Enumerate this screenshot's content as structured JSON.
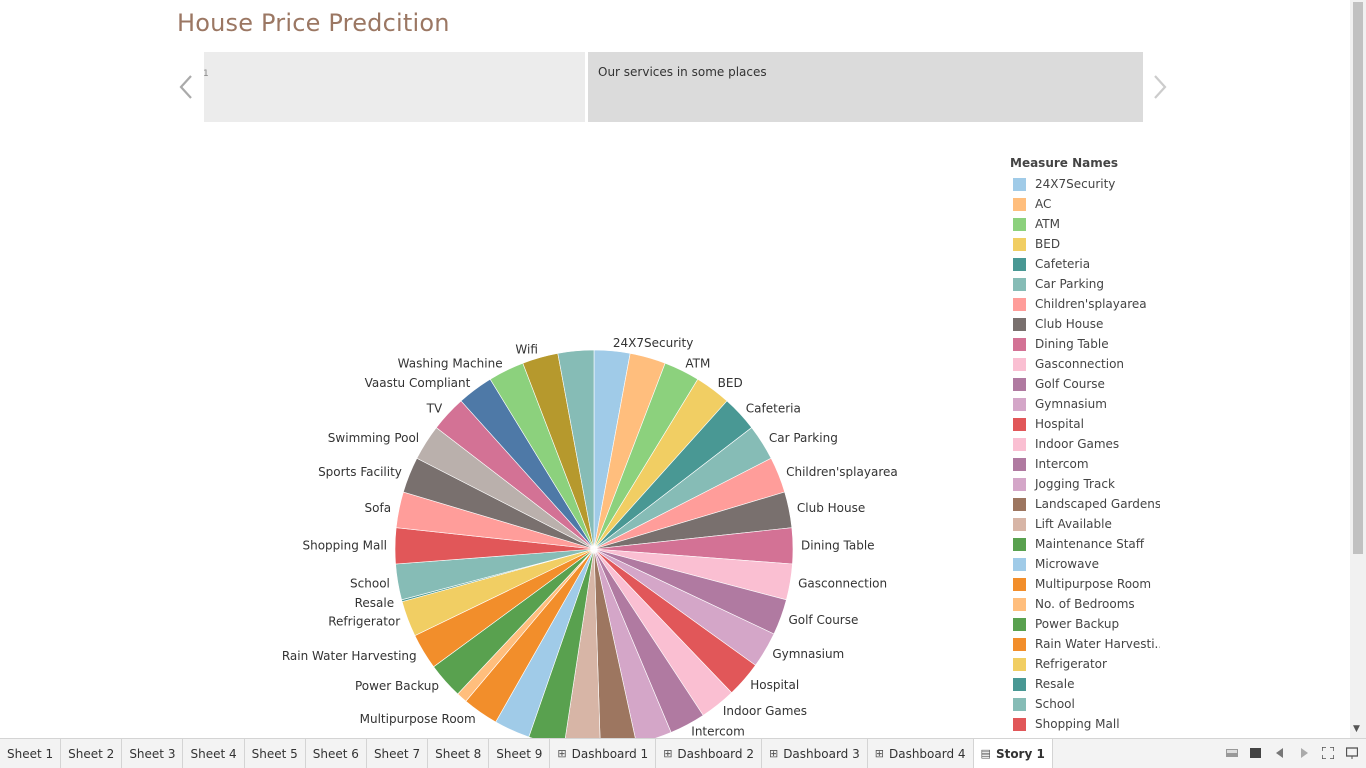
{
  "story": {
    "title": "House Price Predcition",
    "points": [
      "1",
      "Our services  in some places"
    ]
  },
  "colors": {
    "title": "#9b7763",
    "point_active_bg": "#dbdbdb",
    "point_bg": "#ececec"
  },
  "chart_data": {
    "type": "pie",
    "title": "",
    "slices": [
      {
        "label": "24X7Security",
        "value": 1,
        "color": "#a0cbe8"
      },
      {
        "label": "AC",
        "value": 1,
        "color": "#ffbe7d"
      },
      {
        "label": "ATM",
        "value": 1,
        "color": "#8cd17d"
      },
      {
        "label": "BED",
        "value": 1,
        "color": "#f1ce63"
      },
      {
        "label": "Cafeteria",
        "value": 1,
        "color": "#499894"
      },
      {
        "label": "Car Parking",
        "value": 1,
        "color": "#86bcb6"
      },
      {
        "label": "Children'splayarea",
        "value": 1,
        "color": "#ff9d9a"
      },
      {
        "label": "Club House",
        "value": 1,
        "color": "#79706e"
      },
      {
        "label": "Dining Table",
        "value": 1,
        "color": "#d37295"
      },
      {
        "label": "Gasconnection",
        "value": 1,
        "color": "#fabfd2"
      },
      {
        "label": "Golf Course",
        "value": 1,
        "color": "#b07aa1"
      },
      {
        "label": "Gymnasium",
        "value": 1,
        "color": "#d4a6c8"
      },
      {
        "label": "Hospital",
        "value": 1,
        "color": "#e15759"
      },
      {
        "label": "Indoor Games",
        "value": 1,
        "color": "#fabfd2"
      },
      {
        "label": "Intercom",
        "value": 1,
        "color": "#b07aa1"
      },
      {
        "label": "Jogging Track",
        "value": 1,
        "color": "#d4a6c8"
      },
      {
        "label": "Landscaped Gardens",
        "value": 1,
        "color": "#9d7660"
      },
      {
        "label": "Lift Available",
        "value": 1,
        "color": "#d7b5a6"
      },
      {
        "label": "Maintenance Staff",
        "value": 1,
        "color": "#59a14f"
      },
      {
        "label": "Microwave",
        "value": 1,
        "color": "#a0cbe8"
      },
      {
        "label": "Multipurpose Room",
        "value": 1,
        "color": "#f28e2b"
      },
      {
        "label": "No. of Bedrooms",
        "value": 0.3,
        "color": "#ffbe7d"
      },
      {
        "label": "Power Backup",
        "value": 1,
        "color": "#59a14f"
      },
      {
        "label": "Rain Water Harvesting",
        "value": 1,
        "color": "#f28e2b"
      },
      {
        "label": "Refrigerator",
        "value": 1,
        "color": "#f1ce63"
      },
      {
        "label": "Resale",
        "value": 0.05,
        "color": "#499894"
      },
      {
        "label": "School",
        "value": 1,
        "color": "#86bcb6"
      },
      {
        "label": "Shopping Mall",
        "value": 1,
        "color": "#e15759"
      },
      {
        "label": "Sofa",
        "value": 1,
        "color": "#ff9d9a"
      },
      {
        "label": "Sports Facility",
        "value": 1,
        "color": "#79706e"
      },
      {
        "label": "Swimming Pool",
        "value": 1,
        "color": "#bab0ac"
      },
      {
        "label": "TV",
        "value": 1,
        "color": "#d37295"
      },
      {
        "label": "Vaastu Compliant",
        "value": 1,
        "color": "#4e79a7"
      },
      {
        "label": "Washing Machine",
        "value": 1,
        "color": "#8cd17d"
      },
      {
        "label": "Wifi",
        "value": 1,
        "color": "#b6992d"
      },
      {
        "label": "",
        "value": 1,
        "color": "#86bcb6"
      }
    ],
    "shown_labels": {
      "0": "24X7Security",
      "2": "ATM",
      "3": "BED",
      "4": "Cafeteria",
      "5": "Car Parking",
      "6": "Children'splayarea",
      "7": "Club House",
      "8": "Dining Table",
      "9": "Gasconnection",
      "10": "Golf Course",
      "11": "Gymnasium",
      "12": "Hospital",
      "13": "Indoor Games",
      "14": "Intercom",
      "20": "Multipurpose Room",
      "22": "Power Backup",
      "23": "Rain Water Harvesting",
      "24": "Refrigerator",
      "25": "Resale",
      "26": "School",
      "27": "Shopping Mall",
      "28": "Sofa",
      "29": "Sports Facility",
      "30": "Swimming Pool",
      "31": "TV",
      "32": "Vaastu Compliant",
      "33": "Washing Machine",
      "34": "Wifi"
    }
  },
  "legend": {
    "title": "Measure Names",
    "items": [
      {
        "label": "24X7Security",
        "color": "#a0cbe8"
      },
      {
        "label": "AC",
        "color": "#ffbe7d"
      },
      {
        "label": "ATM",
        "color": "#8cd17d"
      },
      {
        "label": "BED",
        "color": "#f1ce63"
      },
      {
        "label": "Cafeteria",
        "color": "#499894"
      },
      {
        "label": "Car Parking",
        "color": "#86bcb6"
      },
      {
        "label": "Children'splayarea",
        "color": "#ff9d9a"
      },
      {
        "label": "Club House",
        "color": "#79706e"
      },
      {
        "label": "Dining Table",
        "color": "#d37295"
      },
      {
        "label": "Gasconnection",
        "color": "#fabfd2"
      },
      {
        "label": "Golf Course",
        "color": "#b07aa1"
      },
      {
        "label": "Gymnasium",
        "color": "#d4a6c8"
      },
      {
        "label": "Hospital",
        "color": "#e15759"
      },
      {
        "label": "Indoor Games",
        "color": "#fabfd2"
      },
      {
        "label": "Intercom",
        "color": "#b07aa1"
      },
      {
        "label": "Jogging Track",
        "color": "#d4a6c8"
      },
      {
        "label": "Landscaped Gardens",
        "color": "#9d7660"
      },
      {
        "label": "Lift Available",
        "color": "#d7b5a6"
      },
      {
        "label": "Maintenance Staff",
        "color": "#59a14f"
      },
      {
        "label": "Microwave",
        "color": "#a0cbe8"
      },
      {
        "label": "Multipurpose Room",
        "color": "#f28e2b"
      },
      {
        "label": "No. of Bedrooms",
        "color": "#ffbe7d"
      },
      {
        "label": "Power Backup",
        "color": "#59a14f"
      },
      {
        "label": "Rain Water Harvesti..",
        "color": "#f28e2b"
      },
      {
        "label": "Refrigerator",
        "color": "#f1ce63"
      },
      {
        "label": "Resale",
        "color": "#499894"
      },
      {
        "label": "School",
        "color": "#86bcb6"
      },
      {
        "label": "Shopping Mall",
        "color": "#e15759"
      },
      {
        "label": "",
        "color": "#ff9d9a"
      }
    ]
  },
  "tabs": [
    {
      "label": "Sheet 1",
      "icon": ""
    },
    {
      "label": "Sheet 2",
      "icon": ""
    },
    {
      "label": "Sheet 3",
      "icon": ""
    },
    {
      "label": "Sheet 4",
      "icon": ""
    },
    {
      "label": "Sheet 5",
      "icon": ""
    },
    {
      "label": "Sheet 6",
      "icon": ""
    },
    {
      "label": "Sheet 7",
      "icon": ""
    },
    {
      "label": "Sheet 8",
      "icon": ""
    },
    {
      "label": "Sheet 9",
      "icon": ""
    },
    {
      "label": "Dashboard 1",
      "icon": "dashboard-icon"
    },
    {
      "label": "Dashboard 2",
      "icon": "dashboard-icon"
    },
    {
      "label": "Dashboard 3",
      "icon": "dashboard-icon"
    },
    {
      "label": "Dashboard 4",
      "icon": "dashboard-icon"
    },
    {
      "label": "Story 1",
      "icon": "story-icon",
      "active": true
    }
  ],
  "controls": [
    "sheet-sorter-icon",
    "filmstrip-icon",
    "prev-sheet-icon",
    "next-sheet-icon",
    "fullscreen-icon",
    "present-icon"
  ]
}
